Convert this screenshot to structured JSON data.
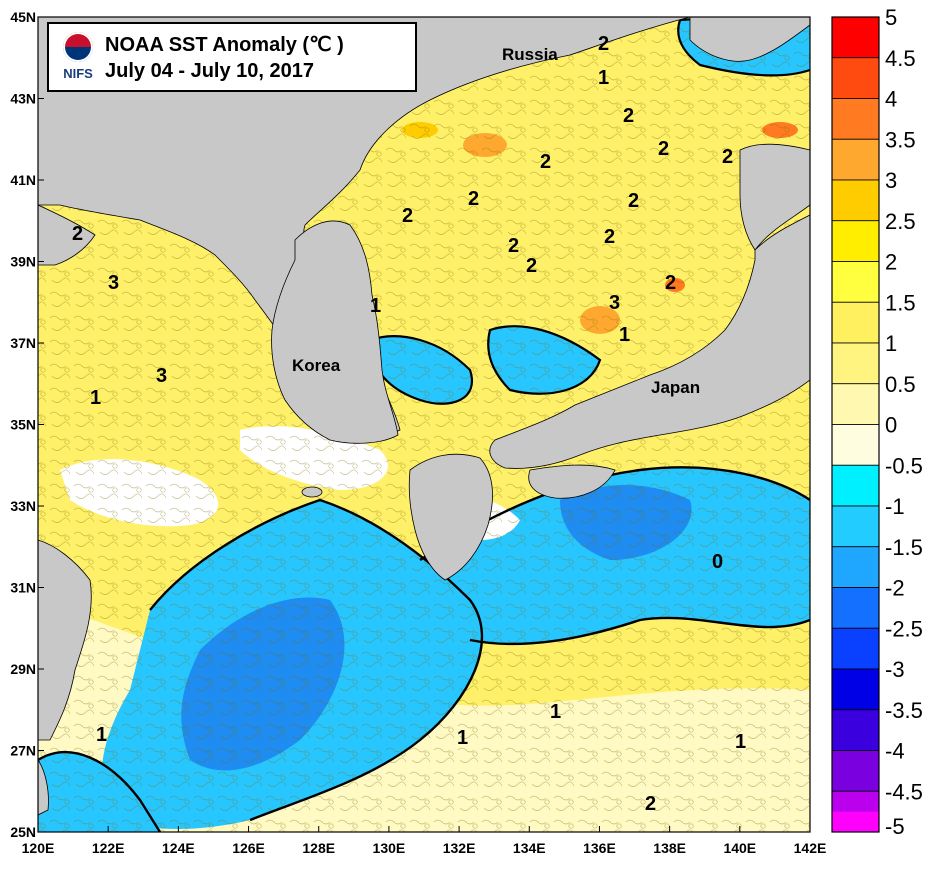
{
  "title_box": {
    "logo_text": "NIFS",
    "line1": "NOAA SST Anomaly (℃ )",
    "line2": "July 04 - July 10, 2017"
  },
  "region_labels": {
    "russia": "Russia",
    "korea": "Korea",
    "japan": "Japan"
  },
  "chart_data": {
    "type": "heatmap",
    "title": "NOAA SST Anomaly (℃ )",
    "subtitle": "July 04 - July 10, 2017",
    "x_ticks": [
      "120E",
      "122E",
      "124E",
      "126E",
      "128E",
      "130E",
      "132E",
      "134E",
      "136E",
      "138E",
      "140E",
      "142E"
    ],
    "y_ticks": [
      "45N",
      "43N",
      "41N",
      "39N",
      "37N",
      "35N",
      "33N",
      "31N",
      "29N",
      "27N",
      "25N"
    ],
    "xlim": [
      120,
      142
    ],
    "ylim": [
      25,
      45
    ],
    "colorbar": {
      "labels": [
        "5",
        "4.5",
        "4",
        "3.5",
        "3",
        "2.5",
        "2",
        "1.5",
        "1",
        "0.5",
        "0",
        "-0.5",
        "-1",
        "-1.5",
        "-2",
        "-2.5",
        "-3",
        "-3.5",
        "-4",
        "-4.5",
        "-5"
      ],
      "colors": [
        "#ff0000",
        "#ff4a10",
        "#ff7a20",
        "#ffa830",
        "#ffcc00",
        "#ffee00",
        "#ffff40",
        "#fff060",
        "#fff480",
        "#fff8b0",
        "#fffde0",
        "#00f0ff",
        "#22ccff",
        "#1fa6ff",
        "#1470ff",
        "#0a40ff",
        "#0000e6",
        "#3a00dd",
        "#7a00e0",
        "#bb00ee",
        "#ff00ff"
      ]
    },
    "contour_labels": [
      "2",
      "1",
      "2",
      "2",
      "2",
      "2",
      "2",
      "2",
      "2",
      "2",
      "2",
      "2",
      "2",
      "3",
      "3",
      "3",
      "2",
      "1",
      "1",
      "1",
      "0",
      "1",
      "1",
      "1",
      "1",
      "2"
    ]
  },
  "colors": {
    "land": "#c8c8c8",
    "sea_warm": "#fff06a",
    "sea_neutral": "#fff9c4",
    "sea_cool": "#28c6ff",
    "sea_cold": "#1e8cf0"
  }
}
